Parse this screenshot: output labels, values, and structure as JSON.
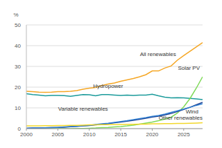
{
  "chart_data": {
    "type": "line",
    "y_label": "%",
    "x": [
      2000,
      2001,
      2002,
      2003,
      2004,
      2005,
      2006,
      2007,
      2008,
      2009,
      2010,
      2011,
      2012,
      2013,
      2014,
      2015,
      2016,
      2017,
      2018,
      2019,
      2020,
      2021,
      2022,
      2023,
      2024,
      2025,
      2026,
      2027,
      2028
    ],
    "xlim": [
      2000,
      2028
    ],
    "xticks": [
      2000,
      2005,
      2010,
      2015,
      2020,
      2025
    ],
    "ylim": [
      0,
      50
    ],
    "yticks": [
      0,
      10,
      20,
      30,
      40,
      50
    ],
    "grid": true,
    "series": [
      {
        "name": "All renewables",
        "color": "#f5a623",
        "values": [
          18,
          17.8,
          17.6,
          17.5,
          17.6,
          17.8,
          17.8,
          18,
          18.3,
          19,
          19.5,
          19.8,
          20.8,
          21.5,
          22,
          22.8,
          23.5,
          24.2,
          25,
          26,
          27.8,
          27.8,
          29.2,
          30.2,
          33,
          35.2,
          37.3,
          39.4,
          41.5
        ]
      },
      {
        "name": "Hydropower",
        "color": "#1a9a9a",
        "values": [
          16.8,
          16.4,
          16.2,
          15.8,
          16,
          16,
          15.9,
          15.6,
          16,
          16.4,
          16.3,
          15.8,
          16.4,
          16.4,
          16.2,
          16,
          16.2,
          16,
          16.2,
          16.2,
          16.6,
          15.8,
          15.2,
          14.8,
          14.9,
          14.8,
          14.6,
          14.3,
          14
        ]
      },
      {
        "name": "Solar PV",
        "color": "#7ed957",
        "values": [
          0,
          0,
          0,
          0,
          0,
          0,
          0,
          0,
          0.1,
          0.1,
          0.2,
          0.3,
          0.5,
          0.6,
          0.8,
          1,
          1.3,
          1.7,
          2.2,
          2.7,
          3.2,
          3.8,
          4.6,
          5.5,
          7.5,
          10.5,
          14.5,
          19.5,
          25
        ]
      },
      {
        "name": "Variable renewables",
        "color": "#1f3f8f",
        "values": [
          0.2,
          0.3,
          0.3,
          0.4,
          0.5,
          0.6,
          0.7,
          0.9,
          1.1,
          1.3,
          1.5,
          1.8,
          2.1,
          2.4,
          2.8,
          3.2,
          3.6,
          4,
          4.5,
          5,
          5.6,
          6,
          6.6,
          7.3,
          8.2,
          9.2,
          10.3,
          11.5,
          12.7
        ]
      },
      {
        "name": "Wind",
        "color": "#2f7fd1",
        "values": [
          0.2,
          0.3,
          0.3,
          0.4,
          0.5,
          0.6,
          0.8,
          1,
          1.2,
          1.4,
          1.6,
          2,
          2.3,
          2.6,
          3,
          3.4,
          3.8,
          4.3,
          4.8,
          5.3,
          5.9,
          6.3,
          7,
          7.8,
          8.6,
          9.4,
          10.3,
          11.2,
          12
        ]
      },
      {
        "name": "Other renewables",
        "color": "#f2d72a",
        "values": [
          1.3,
          1.3,
          1.3,
          1.4,
          1.4,
          1.5,
          1.5,
          1.6,
          1.6,
          1.7,
          1.8,
          1.8,
          1.9,
          1.9,
          2,
          2,
          2.1,
          2.1,
          2.2,
          2.2,
          2.3,
          2.3,
          2.4,
          2.4,
          2.5,
          2.5,
          2.6,
          2.7,
          2.8
        ]
      }
    ]
  }
}
